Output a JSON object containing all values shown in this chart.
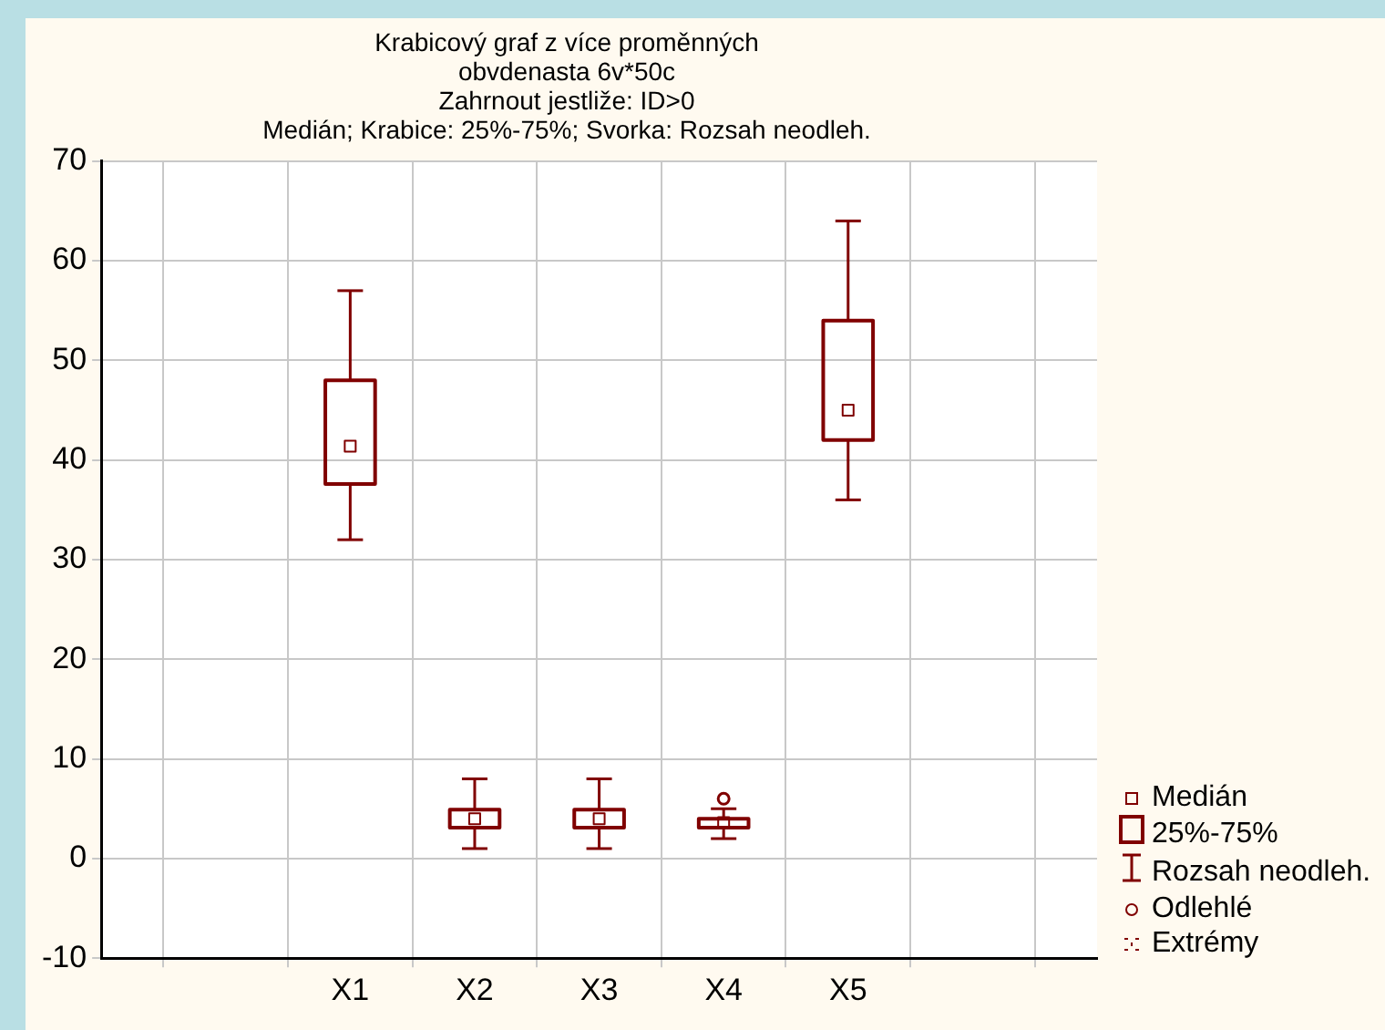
{
  "chart_data": {
    "type": "box",
    "title": "Krabicový graf z více proměnných\nobvdenasta 6v*50c\nZahrnout jestliže: ID>0\nMedián; Krabice: 25%-75%; Svorka: Rozsah neodleh.",
    "categories": [
      null,
      null,
      "X1",
      "X2",
      "X3",
      "X4",
      "X5",
      null,
      null
    ],
    "series": [
      {
        "color": "#800000",
        "boxes": [
          null,
          null,
          {
            "low": 32,
            "q1": 37.6,
            "median": 41.4,
            "q3": 48,
            "high": 57
          },
          {
            "low": 1,
            "q1": 3.1,
            "median": 4,
            "q3": 4.9,
            "high": 8
          },
          {
            "low": 1,
            "q1": 3.1,
            "median": 4,
            "q3": 4.9,
            "high": 8
          },
          {
            "low": 2,
            "q1": 3.1,
            "median": 3.6,
            "q3": 4,
            "high": 5,
            "outliers": [
              6
            ]
          },
          {
            "low": 36,
            "q1": 42,
            "median": 45,
            "q3": 54,
            "high": 64
          },
          null,
          null
        ]
      }
    ],
    "ylim": [
      -10,
      70
    ],
    "yticks": [
      -10,
      0,
      10,
      20,
      30,
      40,
      50,
      60,
      70
    ],
    "grid": true,
    "annotations": [
      "Medián",
      "25%-75%",
      "Rozsah neodleh.",
      "Odlehlé",
      "Extrémy"
    ]
  }
}
